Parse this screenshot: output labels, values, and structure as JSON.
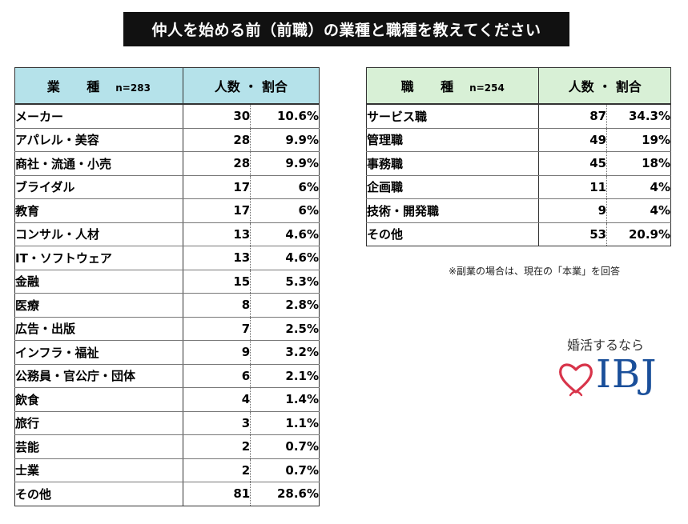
{
  "title": "仲人を始める前（前職）の業種と職種を教えてください",
  "industry_table": {
    "header_label": "業 種",
    "header_n": "n=283",
    "header_stat": "人数 ・ 割合",
    "rows": [
      {
        "name": "メーカー",
        "count": "30",
        "pct": "10.6%"
      },
      {
        "name": "アパレル・美容",
        "count": "28",
        "pct": "9.9%"
      },
      {
        "name": "商社・流通・小売",
        "count": "28",
        "pct": "9.9%"
      },
      {
        "name": "ブライダル",
        "count": "17",
        "pct": "6%"
      },
      {
        "name": "教育",
        "count": "17",
        "pct": "6%"
      },
      {
        "name": "コンサル・人材",
        "count": "13",
        "pct": "4.6%"
      },
      {
        "name": "IT・ソフトウェア",
        "count": "13",
        "pct": "4.6%"
      },
      {
        "name": "金融",
        "count": "15",
        "pct": "5.3%"
      },
      {
        "name": "医療",
        "count": "8",
        "pct": "2.8%"
      },
      {
        "name": "広告・出版",
        "count": "7",
        "pct": "2.5%"
      },
      {
        "name": "インフラ・福祉",
        "count": "9",
        "pct": "3.2%"
      },
      {
        "name": "公務員・官公庁・団体",
        "count": "6",
        "pct": "2.1%"
      },
      {
        "name": "飲食",
        "count": "4",
        "pct": "1.4%"
      },
      {
        "name": "旅行",
        "count": "3",
        "pct": "1.1%"
      },
      {
        "name": "芸能",
        "count": "2",
        "pct": "0.7%"
      },
      {
        "name": "士業",
        "count": "2",
        "pct": "0.7%"
      },
      {
        "name": "その他",
        "count": "81",
        "pct": "28.6%"
      }
    ]
  },
  "occupation_table": {
    "header_label": "職 種",
    "header_n": "n=254",
    "header_stat": "人数 ・ 割合",
    "rows": [
      {
        "name": "サービス職",
        "count": "87",
        "pct": "34.3%"
      },
      {
        "name": "管理職",
        "count": "49",
        "pct": "19%"
      },
      {
        "name": "事務職",
        "count": "45",
        "pct": "18%"
      },
      {
        "name": "企画職",
        "count": "11",
        "pct": "4%"
      },
      {
        "name": "技術・開発職",
        "count": "9",
        "pct": "4%"
      },
      {
        "name": "その他",
        "count": "53",
        "pct": "20.9%"
      }
    ]
  },
  "note": "※副業の場合は、現在の「本業」を回答",
  "logo": {
    "tagline": "婚活するなら",
    "text": "IBJ",
    "heart_color": "#d8344a",
    "text_color": "#1a4f9a"
  }
}
